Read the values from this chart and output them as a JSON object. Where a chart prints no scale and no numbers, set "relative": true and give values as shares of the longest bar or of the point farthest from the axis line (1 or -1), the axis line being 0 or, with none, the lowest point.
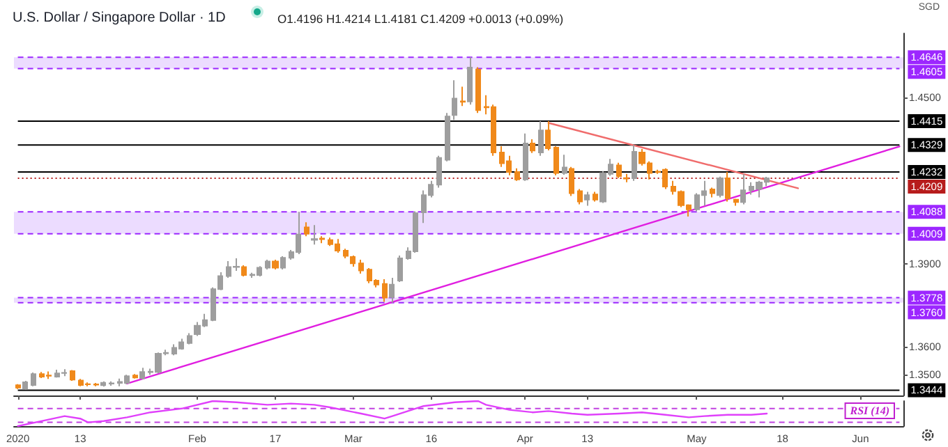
{
  "chart_data": [
    {
      "type": "candlestick",
      "title": "U.S. Dollar / Singapore Dollar · 1D",
      "subtitle": "O1.4196 H1.4214 L1.4181 C1.4209 +0.0013 (+0.09%)",
      "ylabel": "SGD",
      "categories": [
        "2020",
        null,
        null,
        null,
        null,
        null,
        null,
        null,
        "13",
        null,
        null,
        null,
        null,
        null,
        null,
        null,
        null,
        null,
        null,
        null,
        null,
        null,
        null,
        "Feb",
        null,
        null,
        null,
        null,
        null,
        null,
        null,
        null,
        null,
        "17",
        null,
        null,
        null,
        null,
        null,
        null,
        null,
        null,
        null,
        "Mar",
        null,
        null,
        null,
        null,
        null,
        null,
        null,
        null,
        null,
        "16",
        null,
        null,
        null,
        null,
        null,
        null,
        null,
        null,
        null,
        null,
        null,
        "Apr",
        null,
        null,
        null,
        null,
        null,
        null,
        null,
        "13",
        null,
        null,
        null,
        null,
        null,
        null,
        null,
        null,
        null,
        null,
        null,
        null,
        null,
        "May",
        null,
        null,
        null,
        null,
        null,
        null,
        null,
        null,
        null,
        null,
        "18",
        null,
        null,
        null,
        null,
        null,
        null,
        null,
        null,
        null,
        "Jun",
        null,
        null,
        null,
        null,
        null
      ],
      "ohlc": [
        [
          1.3462,
          1.3466,
          1.3448,
          1.3453
        ],
        [
          1.3449,
          1.3478,
          1.3445,
          1.3473
        ],
        [
          1.3463,
          1.3508,
          1.3458,
          1.3502
        ],
        [
          1.3502,
          1.351,
          1.3488,
          1.3493
        ],
        [
          1.3497,
          1.3512,
          1.3485,
          1.3496
        ],
        [
          1.3493,
          1.3518,
          1.349,
          1.3505
        ],
        [
          1.3506,
          1.352,
          1.3495,
          1.3507
        ],
        [
          1.3513,
          1.3517,
          1.3478,
          1.3482
        ],
        [
          1.3479,
          1.3485,
          1.3458,
          1.3463
        ],
        [
          1.3466,
          1.3472,
          1.3458,
          1.3465
        ],
        [
          1.3465,
          1.347,
          1.3458,
          1.3464
        ],
        [
          1.3462,
          1.3476,
          1.3457,
          1.3471
        ],
        [
          1.3468,
          1.3476,
          1.346,
          1.3469
        ],
        [
          1.347,
          1.3486,
          1.3458,
          1.3474
        ],
        [
          1.347,
          1.35,
          1.3466,
          1.3495
        ],
        [
          1.3497,
          1.3502,
          1.3486,
          1.349
        ],
        [
          1.3487,
          1.3525,
          1.3483,
          1.351
        ],
        [
          1.3509,
          1.3522,
          1.35,
          1.3511
        ],
        [
          1.351,
          1.358,
          1.3505,
          1.3576
        ],
        [
          1.3577,
          1.359,
          1.357,
          1.3579
        ],
        [
          1.3576,
          1.361,
          1.357,
          1.3597
        ],
        [
          1.3594,
          1.363,
          1.359,
          1.3617
        ],
        [
          1.3614,
          1.365,
          1.361,
          1.364
        ],
        [
          1.3646,
          1.369,
          1.364,
          1.3677
        ],
        [
          1.3677,
          1.372,
          1.3672,
          1.3697
        ],
        [
          1.3697,
          1.3815,
          1.3693,
          1.3809
        ],
        [
          1.3809,
          1.387,
          1.3805,
          1.3856
        ],
        [
          1.3856,
          1.391,
          1.385,
          1.3889
        ],
        [
          1.3889,
          1.392,
          1.3875,
          1.389
        ],
        [
          1.3889,
          1.3895,
          1.3855,
          1.386
        ],
        [
          1.3859,
          1.3868,
          1.385,
          1.3861
        ],
        [
          1.386,
          1.3892,
          1.3855,
          1.3886
        ],
        [
          1.3886,
          1.3915,
          1.388,
          1.3909
        ],
        [
          1.3909,
          1.3915,
          1.388,
          1.3886
        ],
        [
          1.3886,
          1.3928,
          1.388,
          1.3922
        ],
        [
          1.3922,
          1.395,
          1.3915,
          1.3943
        ],
        [
          1.3943,
          1.4088,
          1.3935,
          1.4006
        ],
        [
          1.4032,
          1.405,
          1.4,
          1.4009
        ],
        [
          1.3987,
          1.404,
          1.397,
          1.399
        ],
        [
          1.3992,
          1.4,
          1.3975,
          1.3989
        ],
        [
          1.3986,
          1.3995,
          1.3965,
          1.3971
        ],
        [
          1.3971,
          1.399,
          1.394,
          1.3948
        ],
        [
          1.3948,
          1.3955,
          1.392,
          1.3929
        ],
        [
          1.3925,
          1.393,
          1.389,
          1.3902
        ],
        [
          1.3902,
          1.3915,
          1.3865,
          1.3876
        ],
        [
          1.3879,
          1.3885,
          1.383,
          1.384
        ],
        [
          1.384,
          1.3845,
          1.3815,
          1.3825
        ],
        [
          1.3828,
          1.3845,
          1.3763,
          1.3778
        ],
        [
          1.378,
          1.385,
          1.376,
          1.3825
        ],
        [
          1.384,
          1.393,
          1.3835,
          1.392
        ],
        [
          1.392,
          1.396,
          1.3915,
          1.3945
        ],
        [
          1.3945,
          1.409,
          1.394,
          1.4083
        ],
        [
          1.4086,
          1.4165,
          1.4048,
          1.4148
        ],
        [
          1.4148,
          1.42,
          1.414,
          1.4186
        ],
        [
          1.4186,
          1.429,
          1.4175,
          1.4283
        ],
        [
          1.4276,
          1.4445,
          1.427,
          1.4432
        ],
        [
          1.4437,
          1.4563,
          1.442,
          1.4497
        ],
        [
          1.4487,
          1.454,
          1.447,
          1.4485
        ],
        [
          1.4486,
          1.4646,
          1.4475,
          1.4609
        ],
        [
          1.4602,
          1.461,
          1.4445,
          1.4455
        ],
        [
          1.4467,
          1.4509,
          1.444,
          1.4465
        ],
        [
          1.4466,
          1.4475,
          1.429,
          1.4302
        ],
        [
          1.4302,
          1.4325,
          1.425,
          1.4263
        ],
        [
          1.4271,
          1.429,
          1.422,
          1.4232
        ],
        [
          1.4232,
          1.4245,
          1.42,
          1.4205
        ],
        [
          1.4205,
          1.4371,
          1.42,
          1.4335
        ],
        [
          1.4335,
          1.435,
          1.43,
          1.4309
        ],
        [
          1.4302,
          1.4415,
          1.429,
          1.4382
        ],
        [
          1.4382,
          1.4415,
          1.431,
          1.4317
        ],
        [
          1.432,
          1.4325,
          1.422,
          1.4228
        ],
        [
          1.4228,
          1.4294,
          1.4222,
          1.4248
        ],
        [
          1.4243,
          1.425,
          1.4145,
          1.4155
        ],
        [
          1.4163,
          1.417,
          1.4115,
          1.4125
        ],
        [
          1.4132,
          1.416,
          1.411,
          1.4148
        ],
        [
          1.4151,
          1.416,
          1.4125,
          1.4132
        ],
        [
          1.4125,
          1.4235,
          1.412,
          1.4228
        ],
        [
          1.4225,
          1.4279,
          1.4218,
          1.4259
        ],
        [
          1.4256,
          1.4265,
          1.421,
          1.4217
        ],
        [
          1.421,
          1.4225,
          1.4195,
          1.4208
        ],
        [
          1.4209,
          1.4329,
          1.42,
          1.4305
        ],
        [
          1.4302,
          1.4315,
          1.4255,
          1.4263
        ],
        [
          1.4263,
          1.427,
          1.4205,
          1.4228
        ],
        [
          1.4233,
          1.424,
          1.4225,
          1.4231
        ],
        [
          1.424,
          1.4245,
          1.417,
          1.4179
        ],
        [
          1.4179,
          1.42,
          1.415,
          1.4163
        ],
        [
          1.416,
          1.4165,
          1.4105,
          1.4112
        ],
        [
          1.4112,
          1.4115,
          1.4071,
          1.4097
        ],
        [
          1.4097,
          1.4155,
          1.409,
          1.4148
        ],
        [
          1.4148,
          1.42,
          1.411,
          1.4163
        ],
        [
          1.4169,
          1.4175,
          1.414,
          1.4155
        ],
        [
          1.4148,
          1.4215,
          1.414,
          1.4209
        ],
        [
          1.4209,
          1.4232,
          1.4125,
          1.4137
        ],
        [
          1.4132,
          1.4135,
          1.411,
          1.4123
        ],
        [
          1.4123,
          1.4225,
          1.4115,
          1.4166
        ],
        [
          1.4166,
          1.4195,
          1.415,
          1.4179
        ],
        [
          1.4171,
          1.42,
          1.414,
          1.4194
        ],
        [
          1.4196,
          1.4214,
          1.4181,
          1.4209
        ],
        null,
        null,
        null,
        null,
        null,
        null,
        null,
        null,
        null,
        null,
        null,
        null,
        null,
        null,
        null,
        null,
        null
      ],
      "colors": [
        "#f0891a",
        "#9e9e9e",
        "#9e9e9e",
        "#f0891a",
        "#f0891a",
        "#9e9e9e",
        "#9e9e9e",
        "#f0891a",
        "#f0891a",
        "#f0891a",
        "#f0891a",
        "#9e9e9e",
        "#9e9e9e",
        "#9e9e9e",
        "#9e9e9e",
        "#f0891a",
        "#9e9e9e",
        "#9e9e9e",
        "#9e9e9e",
        "#9e9e9e",
        "#9e9e9e",
        "#9e9e9e",
        "#9e9e9e",
        "#9e9e9e",
        "#9e9e9e",
        "#9e9e9e",
        "#9e9e9e",
        "#9e9e9e",
        "#9e9e9e",
        "#f0891a",
        "#9e9e9e",
        "#9e9e9e",
        "#9e9e9e",
        "#f0891a",
        "#9e9e9e",
        "#9e9e9e",
        "#9e9e9e",
        "#f0891a",
        "#9e9e9e",
        "#f0891a",
        "#f0891a",
        "#f0891a",
        "#f0891a",
        "#f0891a",
        "#f0891a",
        "#f0891a",
        "#f0891a",
        "#f0891a",
        "#9e9e9e",
        "#9e9e9e",
        "#9e9e9e",
        "#9e9e9e",
        "#9e9e9e",
        "#9e9e9e",
        "#9e9e9e",
        "#9e9e9e",
        "#9e9e9e",
        "#f0891a",
        "#9e9e9e",
        "#f0891a",
        "#f0891a",
        "#f0891a",
        "#f0891a",
        "#f0891a",
        "#f0891a",
        "#9e9e9e",
        "#f0891a",
        "#9e9e9e",
        "#f0891a",
        "#f0891a",
        "#9e9e9e",
        "#f0891a",
        "#f0891a",
        "#9e9e9e",
        "#f0891a",
        "#9e9e9e",
        "#9e9e9e",
        "#f0891a",
        "#f0891a",
        "#9e9e9e",
        "#f0891a",
        "#f0891a",
        "#f0891a",
        "#f0891a",
        "#f0891a",
        "#f0891a",
        "#f0891a",
        "#9e9e9e",
        "#9e9e9e",
        "#f0891a",
        "#9e9e9e",
        "#f0891a",
        "#f0891a",
        "#9e9e9e",
        "#9e9e9e",
        "#9e9e9e",
        "#9e9e9e",
        null,
        null,
        null,
        null,
        null,
        null,
        null,
        null,
        null,
        null,
        null,
        null,
        null,
        null,
        null,
        null,
        null
      ],
      "series": [
        {
          "type": "line",
          "color": "#e01ee0",
          "values": [
            null,
            null,
            null,
            null,
            null,
            null,
            null,
            null,
            null,
            null,
            null,
            null,
            null,
            null,
            1.3468,
            null,
            null,
            null,
            null,
            null,
            null,
            null,
            null,
            null,
            null,
            null,
            null,
            null,
            null,
            null,
            null,
            null,
            null,
            null,
            null,
            null,
            null,
            null,
            null,
            null,
            null,
            null,
            null,
            null,
            null,
            null,
            null,
            null,
            null,
            null,
            null,
            null,
            null,
            null,
            null,
            null,
            null,
            null,
            null,
            null,
            null,
            null,
            null,
            null,
            null,
            null,
            null,
            null,
            null,
            null,
            null,
            null,
            null,
            null,
            null,
            null,
            null,
            null,
            null,
            null,
            null,
            null,
            null,
            null,
            null,
            null,
            null,
            null,
            null,
            null,
            null,
            null,
            null,
            null,
            null,
            null,
            null,
            null,
            null,
            null,
            null,
            null,
            null,
            null,
            null,
            null,
            null,
            null,
            null,
            null,
            null,
            null,
            null,
            1.4324
          ]
        },
        {
          "type": "line",
          "color": "#f06c6c",
          "values": [
            null,
            null,
            null,
            null,
            null,
            null,
            null,
            null,
            null,
            null,
            null,
            null,
            null,
            null,
            null,
            null,
            null,
            null,
            null,
            null,
            null,
            null,
            null,
            null,
            null,
            null,
            null,
            null,
            null,
            null,
            null,
            null,
            null,
            null,
            null,
            null,
            null,
            null,
            null,
            null,
            null,
            null,
            null,
            null,
            null,
            null,
            null,
            null,
            null,
            null,
            null,
            null,
            null,
            null,
            null,
            null,
            null,
            null,
            null,
            null,
            null,
            null,
            null,
            null,
            null,
            null,
            null,
            null,
            1.4409,
            null,
            null,
            null,
            null,
            null,
            null,
            null,
            null,
            null,
            null,
            null,
            null,
            null,
            null,
            null,
            null,
            null,
            null,
            null,
            null,
            null,
            null,
            null,
            null,
            null,
            null,
            null,
            null,
            null,
            null,
            null,
            1.4173,
            null,
            null,
            null,
            null,
            null,
            null,
            null,
            null,
            null,
            null,
            null,
            null,
            null
          ]
        }
      ],
      "ylim": [
        1.3425,
        1.4732
      ],
      "yticks": [
        {
          "value": 1.35,
          "label": "1.3500"
        },
        {
          "value": 1.36,
          "label": "1.3600"
        },
        {
          "value": 1.39,
          "label": "1.3900"
        },
        {
          "value": 1.45,
          "label": "1.4500"
        }
      ],
      "ref_lines": [
        {
          "axis": "y",
          "value": 1.4646,
          "label": "1.4646",
          "color": "#9c27ff",
          "line_style": "dashed"
        },
        {
          "axis": "y",
          "value": 1.4605,
          "label": "1.4605",
          "color": "#9c27ff",
          "line_style": "dashed"
        },
        {
          "axis": "y",
          "value": 1.4415,
          "label": "1.4415",
          "color": "#000000",
          "line_style": "solid"
        },
        {
          "axis": "y",
          "value": 1.4329,
          "label": "1.4329",
          "color": "#000000",
          "line_style": "solid"
        },
        {
          "axis": "y",
          "value": 1.4232,
          "label": "1.4232",
          "color": "#000000",
          "line_style": "solid"
        },
        {
          "axis": "y",
          "value": 1.4209,
          "label": "1.4209",
          "color": "#b71c1c",
          "line_style": "dotted"
        },
        {
          "axis": "y",
          "value": 1.4088,
          "label": "1.4088",
          "color": "#9c27ff",
          "line_style": "dashed"
        },
        {
          "axis": "y",
          "value": 1.4009,
          "label": "1.4009",
          "color": "#9c27ff",
          "line_style": "dashed"
        },
        {
          "axis": "y",
          "value": 1.3778,
          "label": "1.3778",
          "color": "#9c27ff",
          "line_style": "dashed"
        },
        {
          "axis": "y",
          "value": 1.376,
          "label": "1.3760",
          "color": "#9c27ff",
          "line_style": "dashed"
        },
        {
          "axis": "y",
          "value": 1.3444,
          "label": "1.3444",
          "color": "#000000",
          "line_style": "solid"
        }
      ],
      "bands": [
        {
          "axis": "y",
          "from": 1.4605,
          "to": 1.4646,
          "color": "#ecdcff"
        },
        {
          "axis": "y",
          "from": 1.4009,
          "to": 1.4088,
          "color": "#ecdcff"
        },
        {
          "axis": "y",
          "from": 1.376,
          "to": 1.3778,
          "color": "#ecdcff"
        }
      ]
    },
    {
      "type": "line",
      "relative": true,
      "color": "#e040fb",
      "categories": [
        null,
        null,
        null,
        null,
        null,
        null,
        null,
        null,
        null,
        null,
        null,
        null,
        null,
        null,
        null,
        null,
        null,
        null,
        null,
        null,
        null,
        null,
        null,
        null,
        null,
        null,
        null,
        null,
        null,
        null,
        null,
        null,
        null,
        null,
        null,
        null,
        null,
        null,
        null,
        null,
        null,
        null,
        null,
        null,
        null,
        null,
        null,
        null,
        null,
        null,
        null,
        null,
        null,
        null,
        null,
        null,
        null,
        null,
        null,
        null,
        null,
        null,
        null,
        null,
        null,
        null,
        null,
        null,
        null,
        null,
        null,
        null,
        null,
        null,
        null,
        null,
        null,
        null,
        null,
        null,
        null,
        null,
        null,
        null,
        null,
        null,
        null,
        null,
        null,
        null,
        null,
        null,
        null,
        null,
        null,
        null,
        null,
        null,
        null,
        null,
        null,
        null,
        null,
        null,
        null,
        null,
        null,
        null,
        null,
        null,
        null,
        null,
        null,
        null
      ],
      "values": [
        0,
        null,
        null,
        0.2,
        null,
        null,
        0.4,
        null,
        0.3,
        0.15,
        null,
        0.2,
        null,
        null,
        0.35,
        null,
        null,
        0.55,
        null,
        null,
        null,
        0.7,
        null,
        null,
        null,
        1,
        null,
        null,
        0.95,
        null,
        null,
        null,
        0.85,
        null,
        null,
        0.9,
        null,
        null,
        0.85,
        null,
        0.75,
        null,
        null,
        null,
        0.5,
        null,
        null,
        0.3,
        0.4,
        null,
        null,
        null,
        0.8,
        null,
        null,
        null,
        0.95,
        null,
        null,
        1,
        0.85,
        null,
        null,
        0.65,
        null,
        null,
        0.55,
        null,
        0.6,
        null,
        null,
        0.5,
        null,
        0.45,
        null,
        null,
        null,
        0.5,
        null,
        null,
        0.55,
        null,
        null,
        0.45,
        null,
        null,
        0.35,
        null,
        0.4,
        null,
        null,
        0.45,
        null,
        null,
        0.45,
        null,
        0.5,
        null,
        null,
        null,
        null,
        null,
        null,
        null,
        null,
        null,
        null,
        null,
        null,
        null,
        null,
        null,
        null,
        null
      ],
      "ref_lines": [
        {
          "axis": "y",
          "value": 0.7,
          "color": "#c040e0",
          "line_style": "dashed"
        },
        {
          "axis": "y",
          "value": 0.15,
          "color": "#c040e0",
          "line_style": "dashed"
        }
      ],
      "annotations": [
        "RSI (14)"
      ]
    }
  ]
}
